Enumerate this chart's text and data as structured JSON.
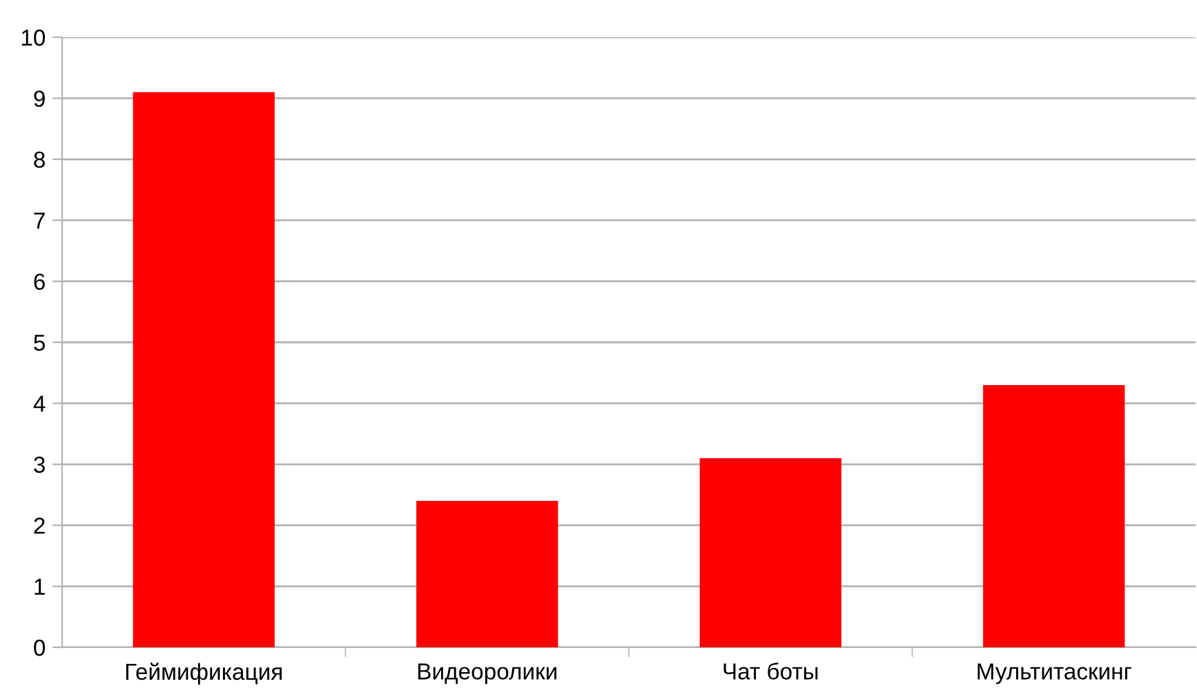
{
  "chart_data": {
    "type": "bar",
    "categories": [
      "Геймификация",
      "Видеоролики",
      "Чат боты",
      "Мультитаскинг"
    ],
    "values": [
      9.1,
      2.4,
      3.1,
      4.3
    ],
    "color": "#ff0000",
    "ylim": [
      0,
      10
    ],
    "yticks": [
      0,
      1,
      2,
      3,
      4,
      5,
      6,
      7,
      8,
      9,
      10
    ],
    "grid": "y",
    "legend": false
  }
}
